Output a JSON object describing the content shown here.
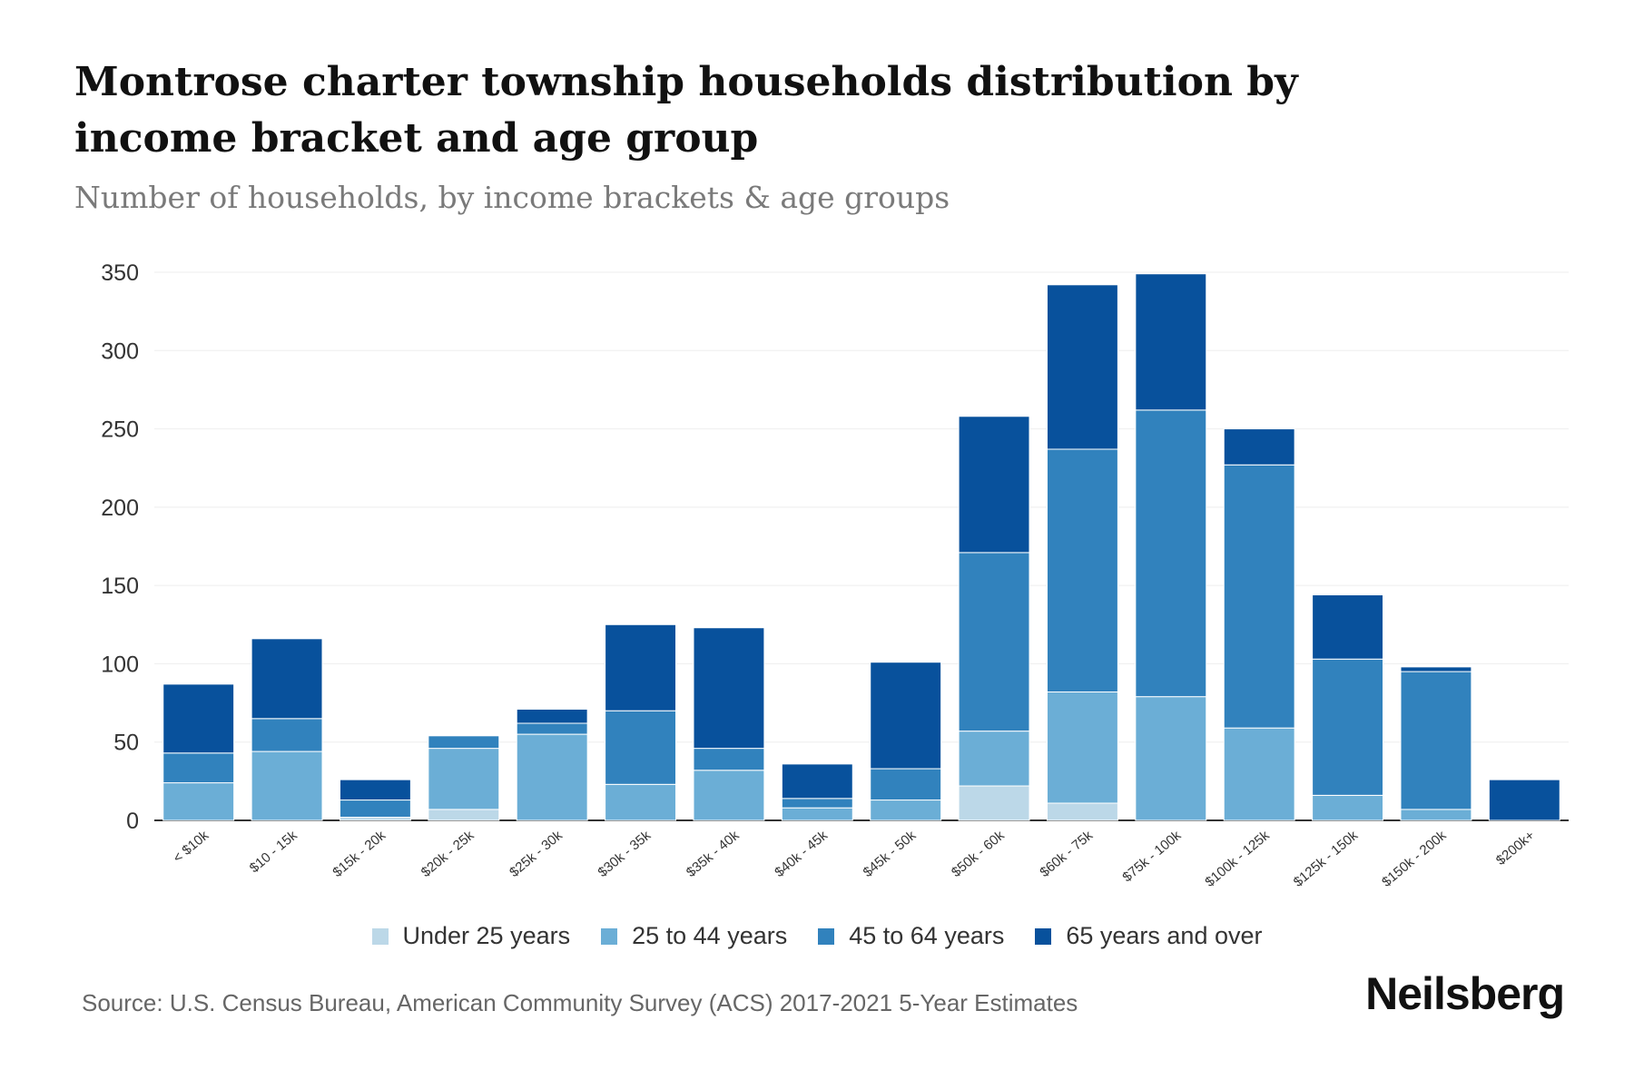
{
  "title": "Montrose charter township households distribution by income bracket and age group",
  "subtitle": "Number of households, by income brackets & age groups",
  "source": "Source: U.S. Census Bureau, American Community Survey (ACS) 2017-2021 5-Year Estimates",
  "brand": "Neilsberg",
  "colors": {
    "grid": "#eeeeee",
    "axis": "#333333"
  },
  "chart_data": {
    "type": "bar",
    "stacked": true,
    "title": "Montrose charter township households distribution by income bracket and age group",
    "subtitle": "Number of households, by income brackets & age groups",
    "xlabel": "",
    "ylabel": "",
    "ylim": [
      0,
      350
    ],
    "yticks": [
      0,
      50,
      100,
      150,
      200,
      250,
      300,
      350
    ],
    "grid": true,
    "legend_position": "bottom",
    "categories": [
      "< $10k",
      "$10 - 15k",
      "$15k - 20k",
      "$20k - 25k",
      "$25k - 30k",
      "$30k - 35k",
      "$35k - 40k",
      "$40k - 45k",
      "$45k - 50k",
      "$50k - 60k",
      "$60k - 75k",
      "$75k - 100k",
      "$100k - 125k",
      "$125k - 150k",
      "$150k - 200k",
      "$200k+"
    ],
    "series": [
      {
        "name": "Under 25 years",
        "color": "#bcd8e8",
        "values": [
          0,
          0,
          2,
          7,
          0,
          0,
          0,
          0,
          0,
          22,
          11,
          0,
          0,
          0,
          0,
          0
        ]
      },
      {
        "name": "25 to 44 years",
        "color": "#6baed6",
        "values": [
          24,
          44,
          0,
          39,
          55,
          23,
          32,
          8,
          13,
          35,
          71,
          79,
          59,
          16,
          7,
          0
        ]
      },
      {
        "name": "45 to 64 years",
        "color": "#3182bd",
        "values": [
          19,
          21,
          11,
          8,
          7,
          47,
          14,
          6,
          20,
          114,
          155,
          183,
          168,
          87,
          88,
          0
        ]
      },
      {
        "name": "65 years and over",
        "color": "#08519c",
        "values": [
          44,
          51,
          13,
          0,
          9,
          55,
          77,
          22,
          68,
          87,
          105,
          87,
          23,
          41,
          3,
          26
        ]
      }
    ]
  }
}
